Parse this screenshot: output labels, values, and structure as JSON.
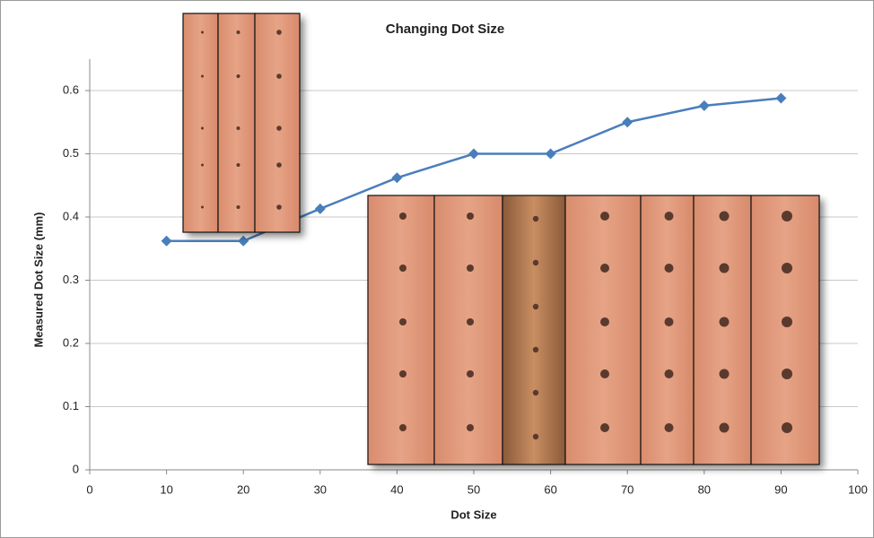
{
  "chart_data": {
    "type": "line",
    "title": "Changing Dot Size",
    "x_label": "Dot Size",
    "y_label": "Measured Dot Size (mm)",
    "x": [
      10,
      20,
      30,
      40,
      50,
      60,
      70,
      80,
      90
    ],
    "series": [
      {
        "name": "Measured Dot Size",
        "color": "#4a7ebb",
        "values": [
          0.362,
          0.362,
          0.413,
          0.462,
          0.5,
          0.5,
          0.55,
          0.576,
          0.588
        ]
      }
    ],
    "xlim": [
      0,
      100
    ],
    "xticks": [
      0,
      10,
      20,
      30,
      40,
      50,
      60,
      70,
      80,
      90,
      100
    ],
    "ylim": [
      0,
      0.6
    ],
    "yticks": [
      0,
      0.1,
      0.2,
      0.3,
      0.4,
      0.5,
      0.6
    ],
    "grid": true
  }
}
